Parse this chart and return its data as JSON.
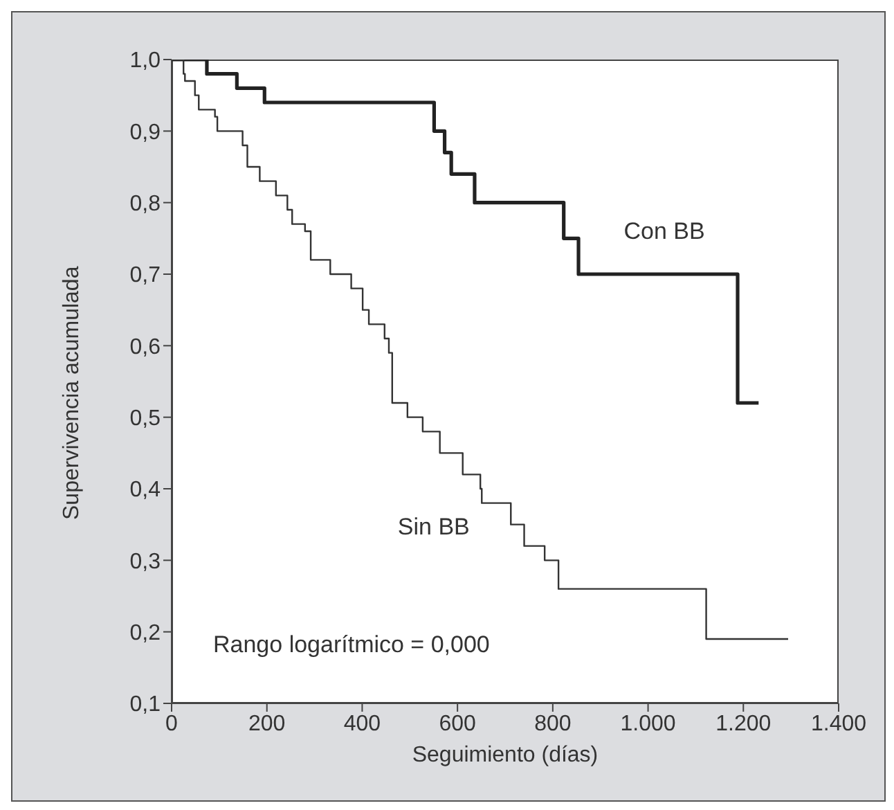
{
  "chart_data": {
    "type": "step",
    "xlabel": "Seguimiento (días)",
    "ylabel": "Supervivencia acumulada",
    "annotations": [
      "Rango logarítmico = 0,000"
    ],
    "xlim": [
      0,
      1400
    ],
    "xticks": [
      0,
      200,
      400,
      600,
      800,
      {
        "value": 1000,
        "label": "1.000"
      },
      {
        "value": 1200,
        "label": "1.200"
      },
      {
        "value": 1400,
        "label": "1.400"
      }
    ],
    "ylim": [
      0.1,
      1.0
    ],
    "yticks": [
      {
        "value": 0.1,
        "label": "0,1"
      },
      {
        "value": 0.2,
        "label": "0,2"
      },
      {
        "value": 0.3,
        "label": "0,3"
      },
      {
        "value": 0.4,
        "label": "0,4"
      },
      {
        "value": 0.5,
        "label": "0,5"
      },
      {
        "value": 0.6,
        "label": "0,6"
      },
      {
        "value": 0.7,
        "label": "0,7"
      },
      {
        "value": 0.8,
        "label": "0,8"
      },
      {
        "value": 0.9,
        "label": "0,9"
      },
      {
        "value": 1.0,
        "label": "1,0"
      }
    ],
    "grid": false,
    "legend": false,
    "marker": "none",
    "line_style": "solid",
    "series": [
      {
        "name": "Con BB",
        "color": "#222222",
        "x": [
          0,
          74,
          137,
          195,
          551,
          573,
          587,
          636,
          823,
          854,
          1188,
          1232
        ],
        "values": [
          1.0,
          0.98,
          0.96,
          0.94,
          0.9,
          0.87,
          0.84,
          0.8,
          0.75,
          0.7,
          0.52,
          0.52
        ]
      },
      {
        "name": "Sin BB",
        "color": "#333333",
        "x": [
          0,
          25,
          28,
          49,
          57,
          91,
          96,
          149,
          159,
          185,
          219,
          243,
          253,
          280,
          292,
          333,
          377,
          401,
          414,
          447,
          456,
          463,
          495,
          527,
          563,
          611,
          648,
          651,
          712,
          740,
          783,
          812,
          1122,
          1294
        ],
        "values": [
          1.0,
          0.98,
          0.97,
          0.95,
          0.93,
          0.92,
          0.9,
          0.88,
          0.85,
          0.83,
          0.81,
          0.79,
          0.77,
          0.76,
          0.72,
          0.7,
          0.68,
          0.65,
          0.63,
          0.61,
          0.59,
          0.52,
          0.5,
          0.48,
          0.45,
          0.42,
          0.4,
          0.38,
          0.35,
          0.32,
          0.3,
          0.26,
          0.19,
          0.19
        ]
      }
    ]
  }
}
